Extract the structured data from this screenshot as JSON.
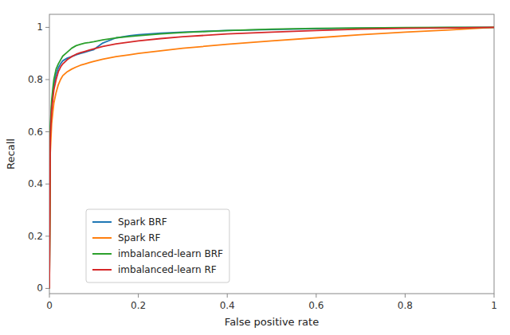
{
  "chart_data": {
    "type": "line",
    "xlabel": "False positive rate",
    "ylabel": "Recall",
    "x": [
      0.0,
      0.002,
      0.005,
      0.008,
      0.01,
      0.015,
      0.02,
      0.025,
      0.03,
      0.04,
      0.05,
      0.06,
      0.07,
      0.08,
      0.09,
      0.1,
      0.12,
      0.15,
      0.18,
      0.2,
      0.25,
      0.3,
      0.4,
      0.5,
      0.6,
      0.7,
      0.8,
      0.9,
      1.0
    ],
    "series": [
      {
        "name": "Spark BRF",
        "color": "#1f77b4",
        "values": [
          0.0,
          0.6,
          0.7,
          0.75,
          0.78,
          0.82,
          0.845,
          0.86,
          0.872,
          0.882,
          0.888,
          0.895,
          0.9,
          0.905,
          0.91,
          0.915,
          0.94,
          0.96,
          0.968,
          0.972,
          0.978,
          0.982,
          0.988,
          0.992,
          0.995,
          0.997,
          0.998,
          0.999,
          1.0
        ]
      },
      {
        "name": "Spark RF",
        "color": "#ff7f0e",
        "values": [
          0.0,
          0.52,
          0.63,
          0.68,
          0.71,
          0.75,
          0.78,
          0.8,
          0.815,
          0.83,
          0.84,
          0.848,
          0.855,
          0.86,
          0.865,
          0.87,
          0.878,
          0.888,
          0.895,
          0.9,
          0.91,
          0.92,
          0.935,
          0.948,
          0.96,
          0.972,
          0.982,
          0.99,
          1.0
        ]
      },
      {
        "name": "imbalanced-learn BRF",
        "color": "#2ca02c",
        "values": [
          0.0,
          0.62,
          0.72,
          0.77,
          0.8,
          0.84,
          0.86,
          0.875,
          0.89,
          0.905,
          0.92,
          0.93,
          0.935,
          0.94,
          0.942,
          0.945,
          0.952,
          0.96,
          0.965,
          0.968,
          0.975,
          0.98,
          0.988,
          0.993,
          0.996,
          0.998,
          0.999,
          1.0,
          1.0
        ]
      },
      {
        "name": "imbalanced-learn RF",
        "color": "#d62728",
        "values": [
          0.0,
          0.58,
          0.68,
          0.73,
          0.76,
          0.8,
          0.83,
          0.848,
          0.86,
          0.876,
          0.888,
          0.897,
          0.903,
          0.908,
          0.913,
          0.918,
          0.927,
          0.937,
          0.944,
          0.948,
          0.957,
          0.964,
          0.975,
          0.982,
          0.988,
          0.993,
          0.996,
          0.998,
          1.0
        ]
      }
    ],
    "xlim": [
      0.0,
      1.0
    ],
    "ylim": [
      -0.02,
      1.05
    ],
    "xticks": [
      0,
      0.2,
      0.4,
      0.6,
      0.8,
      1
    ],
    "yticks": [
      0,
      0.2,
      0.4,
      0.6,
      0.8,
      1
    ],
    "grid": false,
    "legend": "lower left"
  }
}
